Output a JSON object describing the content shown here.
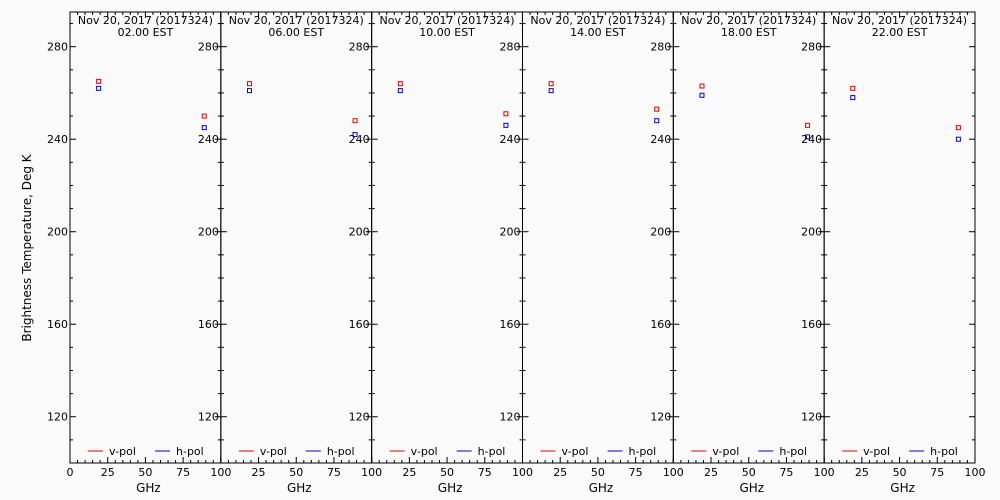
{
  "chart_data": {
    "type": "scatter",
    "ylabel": "Brightness Temperature, Deg K",
    "xlabel": "GHz",
    "xlim": [
      0,
      100
    ],
    "ylim": [
      100,
      295
    ],
    "xticks": [
      0,
      25,
      50,
      75,
      100
    ],
    "xtick_labels": [
      "0",
      "25",
      "50",
      "75",
      "100"
    ],
    "yticks": [
      120,
      160,
      200,
      240,
      280
    ],
    "legend": [
      "v-pol",
      "h-pol"
    ],
    "colors": {
      "v-pol": "#dd0000",
      "h-pol": "#0000cc"
    },
    "panels": [
      {
        "title": "Nov 20, 2017 (2017324)",
        "subtitle": "02.00 EST",
        "series": [
          {
            "name": "v-pol",
            "points": [
              [
                19,
                265
              ],
              [
                89,
                250
              ]
            ]
          },
          {
            "name": "h-pol",
            "points": [
              [
                19,
                262
              ],
              [
                89,
                245
              ]
            ]
          }
        ]
      },
      {
        "title": "Nov 20, 2017 (2017324)",
        "subtitle": "06.00 EST",
        "series": [
          {
            "name": "v-pol",
            "points": [
              [
                19,
                264
              ],
              [
                89,
                248
              ]
            ]
          },
          {
            "name": "h-pol",
            "points": [
              [
                19,
                261
              ],
              [
                89,
                242
              ]
            ]
          }
        ]
      },
      {
        "title": "Nov 20, 2017 (2017324)",
        "subtitle": "10.00 EST",
        "series": [
          {
            "name": "v-pol",
            "points": [
              [
                19,
                264
              ],
              [
                89,
                251
              ]
            ]
          },
          {
            "name": "h-pol",
            "points": [
              [
                19,
                261
              ],
              [
                89,
                246
              ]
            ]
          }
        ]
      },
      {
        "title": "Nov 20, 2017 (2017324)",
        "subtitle": "14.00 EST",
        "series": [
          {
            "name": "v-pol",
            "points": [
              [
                19,
                264
              ],
              [
                89,
                253
              ]
            ]
          },
          {
            "name": "h-pol",
            "points": [
              [
                19,
                261
              ],
              [
                89,
                248
              ]
            ]
          }
        ]
      },
      {
        "title": "Nov 20, 2017 (2017324)",
        "subtitle": "18.00 EST",
        "series": [
          {
            "name": "v-pol",
            "points": [
              [
                19,
                263
              ],
              [
                89,
                246
              ]
            ]
          },
          {
            "name": "h-pol",
            "points": [
              [
                19,
                259
              ],
              [
                89,
                241
              ]
            ]
          }
        ]
      },
      {
        "title": "Nov 20, 2017 (2017324)",
        "subtitle": "22.00 EST",
        "series": [
          {
            "name": "v-pol",
            "points": [
              [
                19,
                262
              ],
              [
                89,
                245
              ]
            ]
          },
          {
            "name": "h-pol",
            "points": [
              [
                19,
                258
              ],
              [
                89,
                240
              ]
            ]
          }
        ]
      }
    ]
  }
}
